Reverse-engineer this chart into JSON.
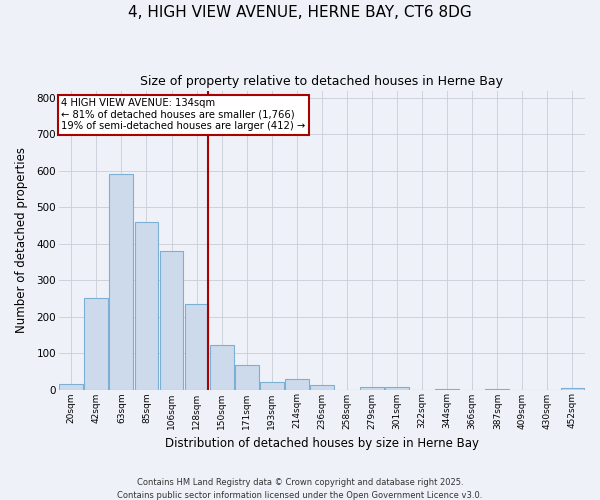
{
  "title": "4, HIGH VIEW AVENUE, HERNE BAY, CT6 8DG",
  "subtitle": "Size of property relative to detached houses in Herne Bay",
  "xlabel": "Distribution of detached houses by size in Herne Bay",
  "ylabel": "Number of detached properties",
  "bar_color": "#cddaeb",
  "bar_edge_color": "#7bafd4",
  "background_color": "#eef2f8",
  "grid_color": "#c8cdd6",
  "categories": [
    "20sqm",
    "42sqm",
    "63sqm",
    "85sqm",
    "106sqm",
    "128sqm",
    "150sqm",
    "171sqm",
    "193sqm",
    "214sqm",
    "236sqm",
    "258sqm",
    "279sqm",
    "301sqm",
    "322sqm",
    "344sqm",
    "366sqm",
    "387sqm",
    "409sqm",
    "430sqm",
    "452sqm"
  ],
  "values": [
    15,
    250,
    590,
    460,
    380,
    235,
    122,
    68,
    20,
    30,
    12,
    0,
    8,
    8,
    0,
    2,
    0,
    2,
    0,
    0,
    3
  ],
  "vline_x_index": 5,
  "vline_color": "#aa0000",
  "annotation_line1": "4 HIGH VIEW AVENUE: 134sqm",
  "annotation_line2": "← 81% of detached houses are smaller (1,766)",
  "annotation_line3": "19% of semi-detached houses are larger (412) →",
  "annotation_box_facecolor": "#ffffff",
  "annotation_box_edgecolor": "#aa0000",
  "ylim": [
    0,
    820
  ],
  "yticks": [
    0,
    100,
    200,
    300,
    400,
    500,
    600,
    700,
    800
  ],
  "footer1": "Contains HM Land Registry data © Crown copyright and database right 2025.",
  "footer2": "Contains public sector information licensed under the Open Government Licence v3.0."
}
